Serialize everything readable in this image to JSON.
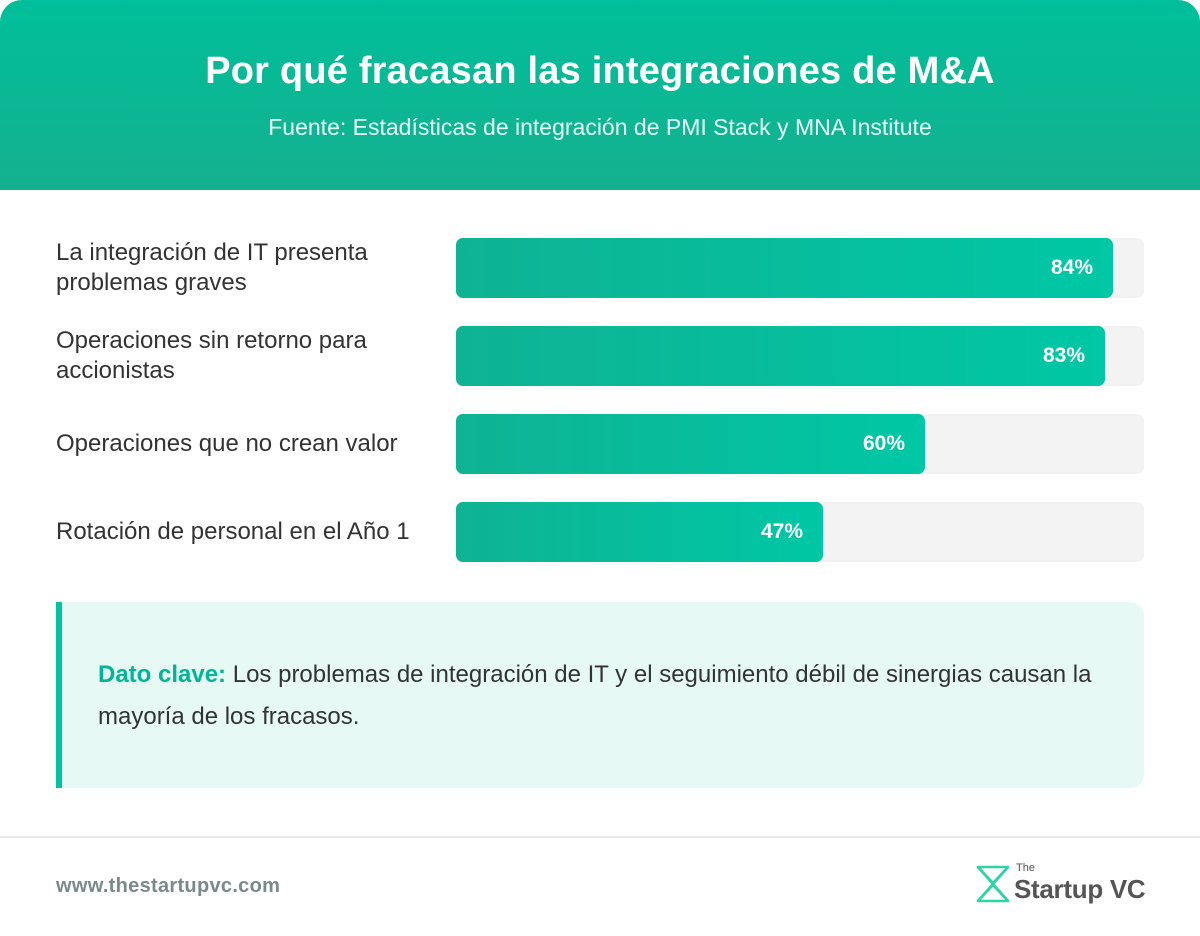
{
  "header": {
    "title": "Por qué fracasan las integraciones de M&A",
    "subtitle": "Fuente: Estadísticas de integración de PMI Stack y MNA Institute"
  },
  "chart_data": {
    "type": "bar",
    "orientation": "horizontal",
    "categories": [
      "La integración de IT presenta problemas graves",
      "Operaciones sin retorno para accionistas",
      "Operaciones que no crean valor",
      "Rotación de personal en el Año 1"
    ],
    "values": [
      84,
      83,
      60,
      47
    ],
    "value_labels": [
      "84%",
      "83%",
      "60%",
      "47%"
    ],
    "xlim": [
      0,
      88
    ],
    "title": "",
    "xlabel": "",
    "ylabel": "",
    "grid": false,
    "legend": "none",
    "colors": {
      "bar": "#00c4a0",
      "track": "#f3f3f3"
    }
  },
  "insight": {
    "key_label": "Dato clave:",
    "text": " Los problemas de integración de IT y el seguimiento débil de sinergias causan la mayoría de los fracasos."
  },
  "footer": {
    "url": "www.thestartupvc.com",
    "logo_small": "The",
    "logo_text": "Startup VC"
  },
  "colors": {
    "accent": "#00c49f",
    "header_bg": "#00bf9a",
    "insight_bg": "#e6f9f4",
    "text": "#333333"
  }
}
